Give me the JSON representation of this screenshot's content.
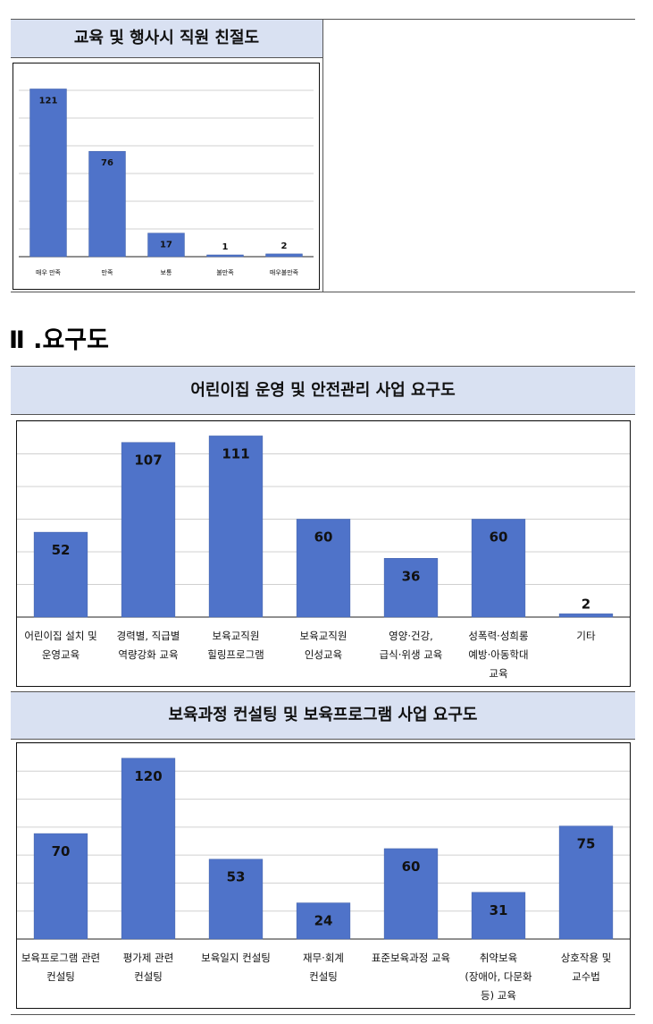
{
  "section1": {
    "header": "교육 및 행사시 직원 친절도"
  },
  "section2": {
    "title": "Ⅱ .요구도"
  },
  "chart_data": [
    {
      "type": "bar",
      "title": "교육 및 행사시 직원 친절도",
      "categories": [
        "매우 만족",
        "만족",
        "보통",
        "불만족",
        "매우불만족"
      ],
      "values": [
        121,
        76,
        17,
        1,
        2
      ],
      "ylim": [
        0,
        120
      ],
      "grid": true,
      "bar_color": "#4f73c9"
    },
    {
      "type": "bar",
      "title": "어린이집 운영 및 안전관리 사업 요구도",
      "categories": [
        [
          "어린이집 설치 및",
          "운영교육"
        ],
        [
          "경력별, 직급별",
          "역량강화 교육"
        ],
        [
          "보육교직원",
          "힐링프로그램"
        ],
        [
          "보육교직원",
          "인성교육"
        ],
        [
          "영양·건강,",
          "급식·위생 교육"
        ],
        [
          "성폭력·성희롱",
          "예방·아동학대",
          "교육"
        ],
        [
          "기타"
        ]
      ],
      "values": [
        52,
        107,
        111,
        60,
        36,
        60,
        2
      ],
      "ylim": [
        0,
        120
      ],
      "grid": true,
      "bar_color": "#4f73c9"
    },
    {
      "type": "bar",
      "title": "보육과정 컨설팅 및 보육프로그램 사업 요구도",
      "categories": [
        [
          "보육프로그램 관련",
          "컨설팅"
        ],
        [
          "평가제 관련",
          "컨설팅"
        ],
        [
          "보육일지 컨설팅"
        ],
        [
          "재무·회계",
          "컨설팅"
        ],
        [
          "표준보육과정 교육"
        ],
        [
          "취약보육",
          "(장애아, 다문화",
          "등) 교육"
        ],
        [
          "상호작용 및",
          "교수법"
        ]
      ],
      "values": [
        70,
        120,
        53,
        24,
        60,
        31,
        75
      ],
      "ylim": [
        0,
        130
      ],
      "grid": true,
      "bar_color": "#4f73c9"
    }
  ]
}
